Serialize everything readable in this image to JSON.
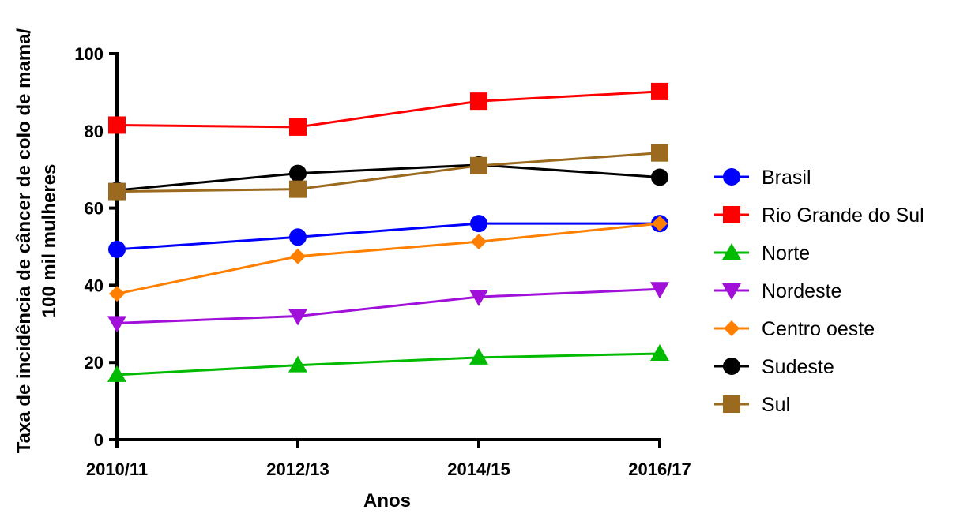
{
  "chart_data": {
    "type": "line",
    "categories": [
      "2010/11",
      "2012/13",
      "2014/15",
      "2016/17"
    ],
    "xlabel": "Anos",
    "ylabel_line1": "Taxa de incidência de câncer de colo de mama/",
    "ylabel_line2": "100 mil mulheres",
    "ylim": [
      0,
      100
    ],
    "yticks": [
      0,
      20,
      40,
      60,
      80,
      100
    ],
    "grid": false,
    "legend_position": "right",
    "series": [
      {
        "name": "Brasil",
        "color": "#0000ff",
        "marker": "circle",
        "values": [
          49.3,
          52.5,
          56.0,
          56.0
        ]
      },
      {
        "name": "Rio Grande do Sul",
        "color": "#ff0000",
        "marker": "square",
        "values": [
          81.5,
          81.0,
          87.7,
          90.2
        ]
      },
      {
        "name": "Norte",
        "color": "#00bb00",
        "marker": "triangle-up",
        "values": [
          16.8,
          19.3,
          21.3,
          22.3
        ]
      },
      {
        "name": "Nordeste",
        "color": "#a010d8",
        "marker": "triangle-down",
        "values": [
          30.2,
          32.0,
          37.0,
          39.0
        ]
      },
      {
        "name": "Centro oeste",
        "color": "#ff8000",
        "marker": "diamond",
        "values": [
          37.8,
          47.5,
          51.3,
          56.0
        ]
      },
      {
        "name": "Sudeste",
        "color": "#000000",
        "marker": "circle",
        "values": [
          64.6,
          69.0,
          71.2,
          68.0
        ]
      },
      {
        "name": "Sul",
        "color": "#9b6a1e",
        "marker": "square",
        "values": [
          64.3,
          64.9,
          71.0,
          74.3
        ]
      }
    ]
  }
}
